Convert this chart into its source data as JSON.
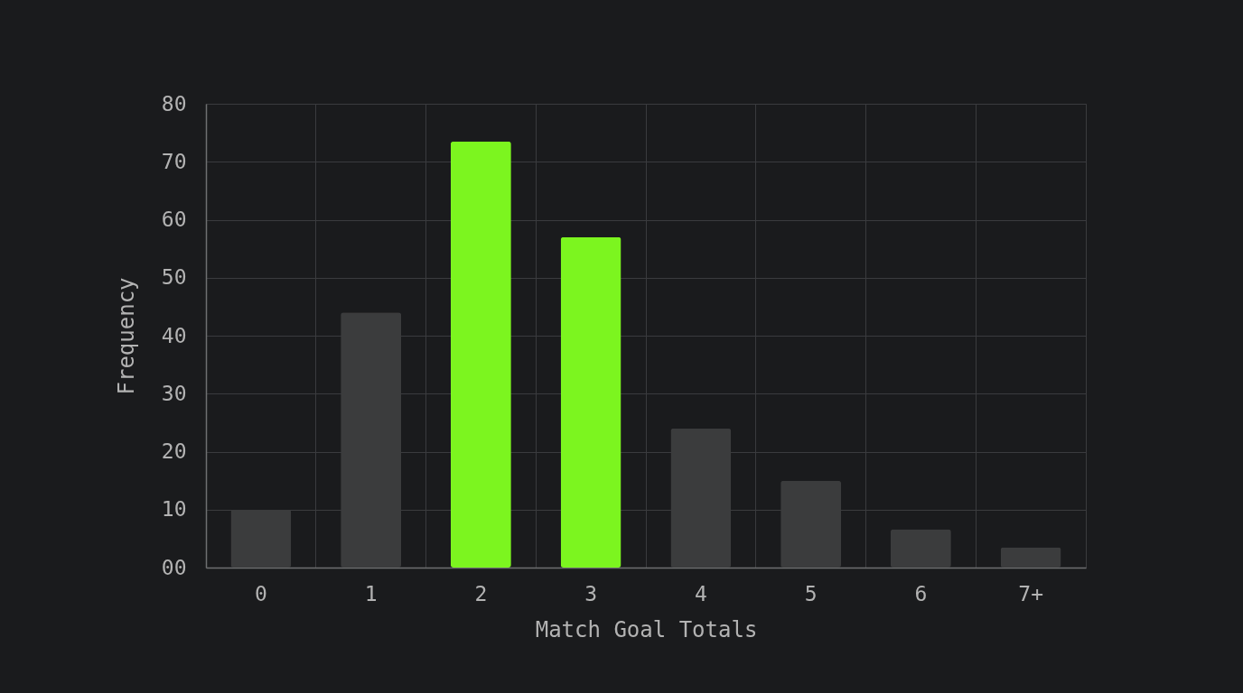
{
  "chart_data": {
    "type": "bar",
    "xlabel": "Match Goal Totals",
    "ylabel": "Frequency",
    "categories": [
      "0",
      "1",
      "2",
      "3",
      "4",
      "5",
      "6",
      "7+"
    ],
    "values": [
      10,
      44,
      73.5,
      57,
      24,
      15,
      6.6,
      3.5
    ],
    "colors": [
      "#3b3c3d",
      "#3b3c3d",
      "#7cf51f",
      "#7cf51f",
      "#3b3c3d",
      "#3b3c3d",
      "#3b3c3d",
      "#3b3c3d"
    ],
    "ylim": [
      0,
      80
    ],
    "yticks": [
      {
        "value": 0,
        "label": "00"
      },
      10,
      20,
      30,
      40,
      50,
      60,
      70,
      80
    ],
    "grid": true
  }
}
